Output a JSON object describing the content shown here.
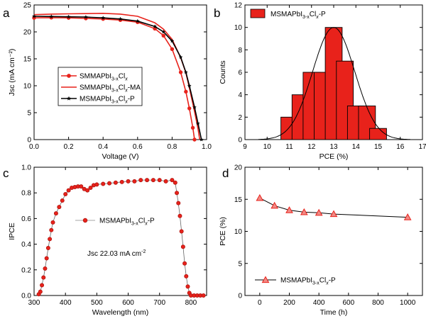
{
  "colors": {
    "red": "#e8221b",
    "black": "#000000",
    "pink": "#f08a85",
    "bar_edge": "#000000"
  },
  "chart_data": [
    {
      "panel": "a",
      "type": "line",
      "xlabel": "Voltage (V)",
      "ylabel": "Jsc (mA cm⁻²)",
      "xlim": [
        0.0,
        1.0
      ],
      "ylim": [
        0,
        25
      ],
      "xticks": [
        0.0,
        0.2,
        0.4,
        0.6,
        0.8,
        1.0
      ],
      "yticks": [
        0,
        5,
        10,
        15,
        20,
        25
      ],
      "legend_position": "center-left",
      "series": [
        {
          "name": "SMMAPbI3-xClx",
          "legend_main": "SMMAPbI",
          "legend_sub": "3-x",
          "legend_mid": "Cl",
          "legend_sub2": "x",
          "legend_tail": "",
          "color": "#e8221b",
          "marker": "circle",
          "x": [
            0.0,
            0.1,
            0.2,
            0.3,
            0.4,
            0.5,
            0.6,
            0.7,
            0.75,
            0.8,
            0.85,
            0.88,
            0.9,
            0.92,
            0.93
          ],
          "y": [
            22.6,
            22.65,
            22.6,
            22.5,
            22.4,
            22.2,
            21.8,
            20.6,
            19.3,
            16.8,
            12.5,
            8.9,
            5.8,
            2.2,
            0.0
          ]
        },
        {
          "name": "SMMAPbI3-xClx-MA",
          "legend_main": "SMMAPbI",
          "legend_sub": "3-x",
          "legend_mid": "Cl",
          "legend_sub2": "x",
          "legend_tail": "-MA",
          "color": "#e8221b",
          "marker": "line",
          "x": [
            0.0,
            0.1,
            0.2,
            0.3,
            0.4,
            0.5,
            0.6,
            0.7,
            0.75,
            0.8,
            0.85,
            0.88,
            0.9,
            0.93,
            0.95,
            0.96
          ],
          "y": [
            23.2,
            23.3,
            23.35,
            23.4,
            23.45,
            23.3,
            22.9,
            21.7,
            20.5,
            18.6,
            15.2,
            12.4,
            9.6,
            5.2,
            2.0,
            0.0
          ]
        },
        {
          "name": "MSMAPbI3-xClx-P",
          "legend_main": "MSMAPbI",
          "legend_sub": "3-x",
          "legend_mid": "Cl",
          "legend_sub2": "x",
          "legend_tail": "-P",
          "color": "#000000",
          "marker": "star",
          "x": [
            0.0,
            0.1,
            0.2,
            0.3,
            0.4,
            0.5,
            0.6,
            0.7,
            0.75,
            0.8,
            0.85,
            0.88,
            0.9,
            0.93,
            0.95,
            0.97
          ],
          "y": [
            22.9,
            22.85,
            22.8,
            22.75,
            22.6,
            22.4,
            22.0,
            21.0,
            20.0,
            18.3,
            15.3,
            12.5,
            10.0,
            6.0,
            3.0,
            0.0
          ]
        }
      ]
    },
    {
      "panel": "b",
      "type": "bar",
      "xlabel": "PCE (%)",
      "ylabel": "Counts",
      "xlim": [
        9,
        17
      ],
      "ylim": [
        0,
        12
      ],
      "xticks": [
        9,
        10,
        11,
        12,
        13,
        14,
        15,
        16,
        17
      ],
      "yticks": [
        0,
        2,
        4,
        6,
        8,
        10,
        12
      ],
      "legend_position": "top-left",
      "legend": {
        "main": "MSMAPbI",
        "sub": "3-x",
        "mid": "Cl",
        "sub2": "x",
        "tail": "-P"
      },
      "bar_width": 0.8,
      "categories": [
        11,
        11.5,
        12,
        12.5,
        13,
        13.5,
        14,
        14.5,
        15
      ],
      "bar_centers": [
        11.0,
        11.5,
        12.0,
        12.5,
        13.0,
        13.5,
        14.0,
        14.5,
        15.0
      ],
      "values": [
        2,
        4,
        6,
        6,
        10,
        7,
        3,
        3,
        1
      ],
      "fit": {
        "type": "gaussian",
        "mean": 13.0,
        "sigma": 0.95,
        "amplitude": 10.0
      }
    },
    {
      "panel": "c",
      "type": "line",
      "xlabel": "Wavelength (nm)",
      "ylabel": "IPCE",
      "xlim": [
        300,
        850
      ],
      "ylim": [
        0.0,
        1.0
      ],
      "xticks": [
        300,
        400,
        500,
        600,
        700,
        800
      ],
      "yticks": [
        0.0,
        0.2,
        0.4,
        0.6,
        0.8,
        1.0
      ],
      "legend_position": "center",
      "legend": {
        "main": "MSMAPbI",
        "sub": "3-x",
        "mid": "Cl",
        "sub2": "x",
        "tail": "-P"
      },
      "annotation": {
        "text": "Jsc 22.03 mA cm",
        "sup": "-2"
      },
      "series": [
        {
          "name": "MSMAPbI3-xClx-P",
          "color": "#e8221b",
          "x": [
            315,
            320,
            325,
            330,
            335,
            340,
            345,
            350,
            355,
            360,
            370,
            380,
            390,
            400,
            410,
            420,
            430,
            440,
            450,
            460,
            470,
            480,
            490,
            500,
            520,
            540,
            560,
            580,
            600,
            620,
            640,
            660,
            680,
            700,
            720,
            740,
            750,
            755,
            760,
            765,
            770,
            775,
            780,
            785,
            790,
            795,
            800,
            810,
            820,
            830,
            840
          ],
          "y": [
            0.01,
            0.03,
            0.08,
            0.14,
            0.21,
            0.29,
            0.37,
            0.44,
            0.51,
            0.57,
            0.64,
            0.69,
            0.74,
            0.79,
            0.82,
            0.84,
            0.845,
            0.85,
            0.85,
            0.83,
            0.82,
            0.84,
            0.86,
            0.865,
            0.87,
            0.875,
            0.88,
            0.885,
            0.89,
            0.89,
            0.9,
            0.9,
            0.9,
            0.9,
            0.89,
            0.9,
            0.88,
            0.8,
            0.72,
            0.62,
            0.5,
            0.38,
            0.25,
            0.15,
            0.07,
            0.02,
            0.0,
            0.0,
            0.0,
            0.0,
            0.0
          ]
        }
      ]
    },
    {
      "panel": "d",
      "type": "line",
      "xlabel": "Time (h)",
      "ylabel": "PCE (%)",
      "xlim": [
        -100,
        1100
      ],
      "ylim": [
        0,
        20
      ],
      "xticks": [
        0,
        200,
        400,
        600,
        800,
        1000
      ],
      "yticks": [
        0,
        5,
        10,
        15,
        20
      ],
      "legend_position": "bottom-left",
      "legend": {
        "main": "MSMAPbI",
        "sub": "3-x",
        "mid": "Cl",
        "sub2": "x",
        "tail": "-P"
      },
      "series": [
        {
          "name": "MSMAPbI3-xClx-P",
          "color": "#e8221b",
          "marker": "triangle",
          "x": [
            0,
            100,
            200,
            300,
            400,
            500,
            1000
          ],
          "y": [
            15.2,
            14.0,
            13.3,
            13.0,
            12.9,
            12.7,
            12.2
          ]
        }
      ]
    }
  ]
}
